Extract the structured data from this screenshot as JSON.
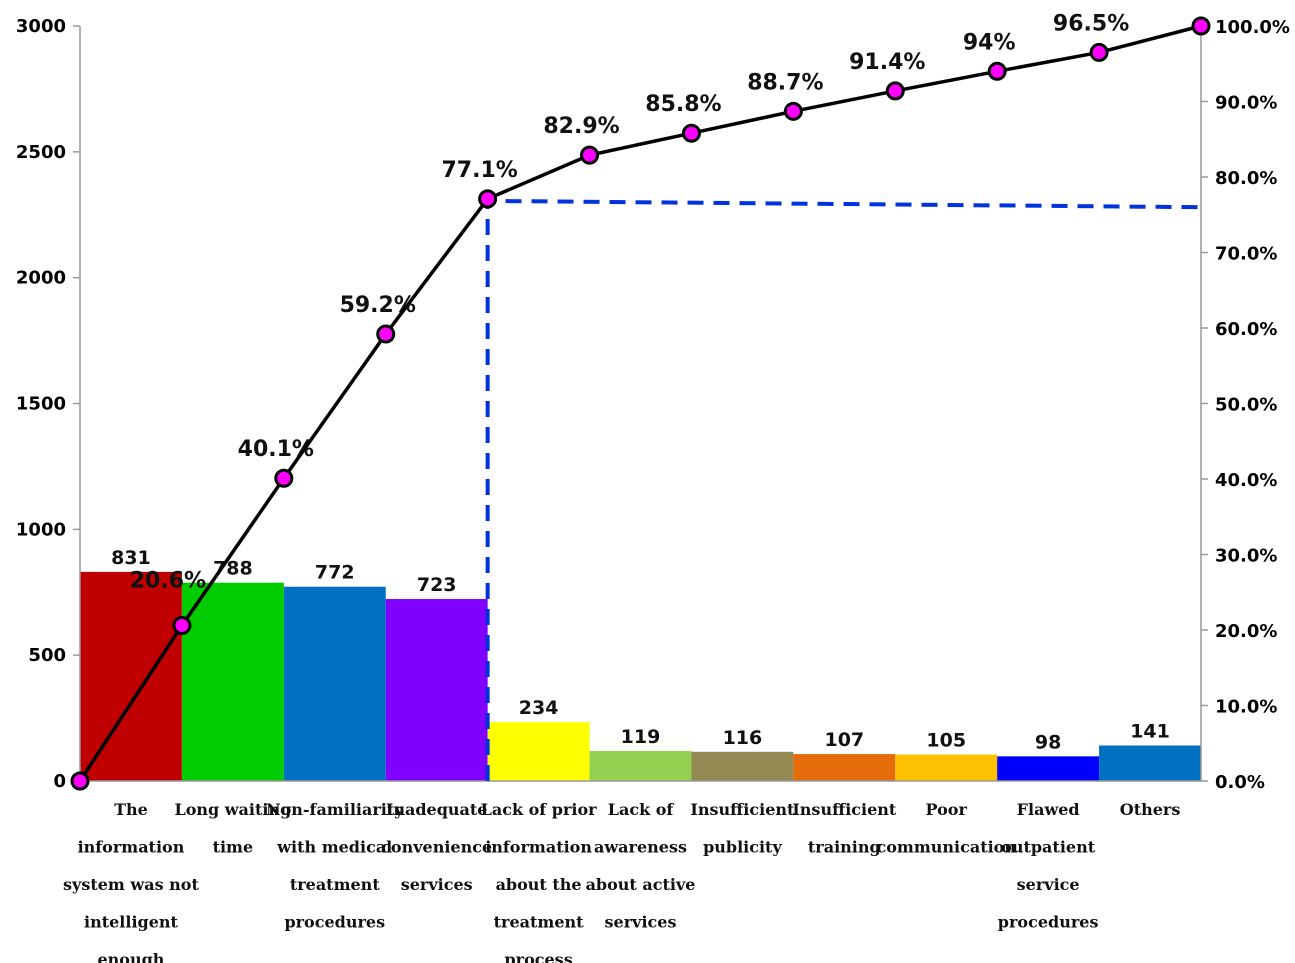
{
  "chart_data": {
    "type": "bar",
    "categories": [
      "The information system was not intelligent enough",
      "Long waiting time",
      "Non-familiarity with medical treatment procedures",
      "Inadequate convenience services",
      "Lack of prior information about the treatment process",
      "Lack of awareness about active services",
      "Insufficient publicity",
      "Insufficient training",
      "Poor communication",
      "Flawed outpatient service procedures",
      "Others"
    ],
    "category_lines": [
      [
        "The",
        "information",
        "system was not",
        "intelligent",
        "enough"
      ],
      [
        "Long waiting",
        "time"
      ],
      [
        "Non-familiarity",
        "with medical",
        "treatment",
        "procedures"
      ],
      [
        "Inadequate",
        "convenience",
        "services"
      ],
      [
        "Lack of prior",
        "information",
        "about the",
        "treatment",
        "process"
      ],
      [
        "Lack of",
        "awareness",
        "about active",
        "services"
      ],
      [
        "Insufficient",
        "publicity"
      ],
      [
        "Insufficient",
        "training"
      ],
      [
        "Poor",
        "communication"
      ],
      [
        "Flawed",
        "outpatient",
        "service",
        "procedures"
      ],
      [
        "Others"
      ]
    ],
    "values": [
      831,
      788,
      772,
      723,
      234,
      119,
      116,
      107,
      105,
      98,
      141
    ],
    "value_labels": [
      "831",
      "788",
      "772",
      "723",
      "234",
      "119",
      "116",
      "107",
      "105",
      "98",
      "141"
    ],
    "bar_colors": [
      "#c00000",
      "#00cc00",
      "#0070c0",
      "#7f00ff",
      "#ffff00",
      "#92d050",
      "#948a54",
      "#e46c0a",
      "#ffc000",
      "#0000ff",
      "#0070c0"
    ],
    "cumulative_percent": [
      0,
      20.6,
      40.1,
      59.2,
      77.1,
      82.9,
      85.8,
      88.7,
      91.4,
      94,
      96.5,
      100
    ],
    "cumulative_labels": [
      "",
      "20.6%",
      "40.1%",
      "59.2%",
      "77.1%",
      "82.9%",
      "85.8%",
      "88.7%",
      "91.4%",
      "94%",
      "96.5%",
      ""
    ],
    "highlight_label_index": 4,
    "highlight_color": "#ff0000",
    "line_color": "#000000",
    "marker_color": "#ff00ff",
    "cutoff_line_color": "#0033dd",
    "cutoff_percent": 76,
    "ylim": [
      0,
      3000
    ],
    "yticks": [
      "0",
      "500",
      "1000",
      "1500",
      "2000",
      "2500",
      "3000"
    ],
    "y2lim": [
      0,
      100
    ],
    "y2ticks": [
      "0.0%",
      "10.0%",
      "20.0%",
      "30.0%",
      "40.0%",
      "50.0%",
      "60.0%",
      "70.0%",
      "80.0%",
      "90.0%",
      "100.0%"
    ],
    "grid": false,
    "legend": "none"
  }
}
